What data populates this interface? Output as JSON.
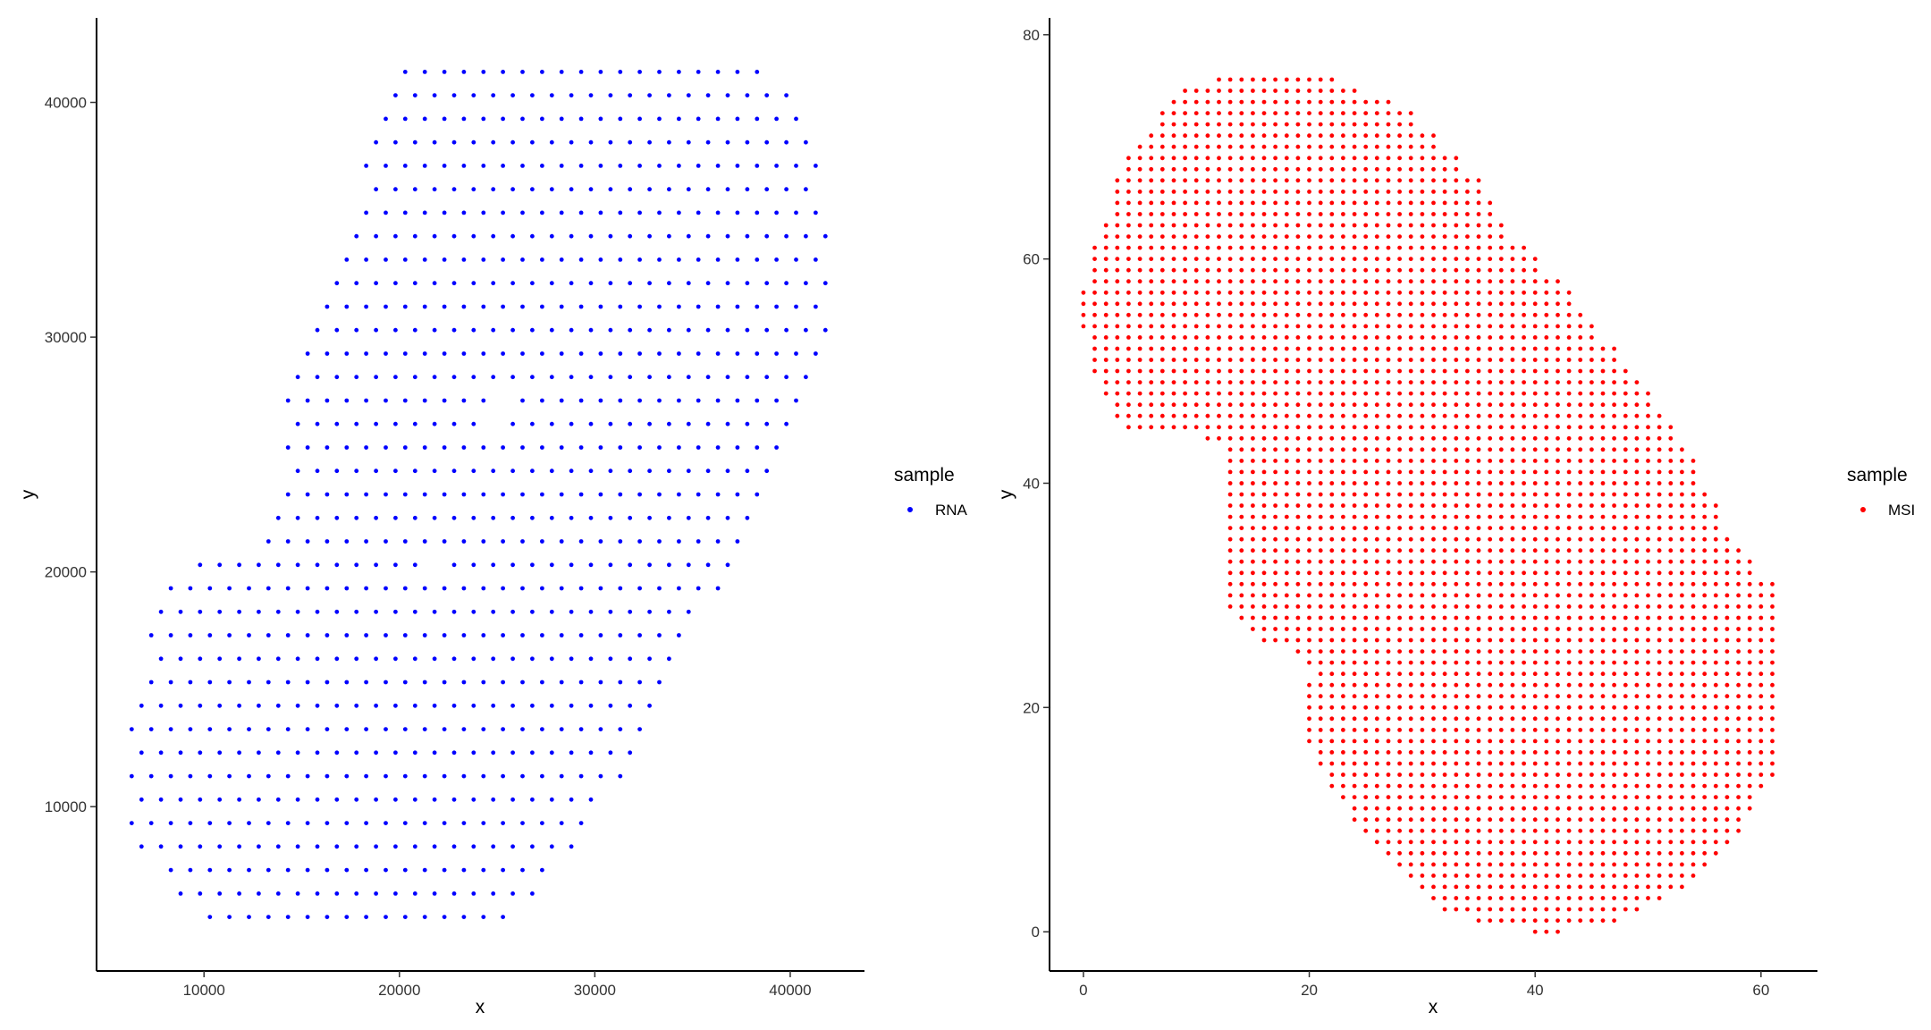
{
  "chart_data": [
    {
      "type": "scatter",
      "title": "",
      "xlabel": "x",
      "ylabel": "y",
      "xlim": [
        4500,
        43800
      ],
      "ylim": [
        3000,
        43600
      ],
      "xticks": [
        10000,
        20000,
        30000,
        40000
      ],
      "yticks": [
        10000,
        20000,
        30000,
        40000
      ],
      "grid": false,
      "legend": {
        "title": "sample",
        "position": "right",
        "entries": [
          {
            "name": "RNA",
            "color": "#0000ff"
          }
        ]
      },
      "series": [
        {
          "name": "RNA",
          "color": "#0000ff",
          "pattern": "hexagonal spot grid (Visium-like), spacing ~500 units in x, ~1000 units in y with alternate rows offset by half a step",
          "region_outline": [
            [
              6300,
              13500
            ],
            [
              7300,
              18000
            ],
            [
              9000,
              20400
            ],
            [
              11500,
              20600
            ],
            [
              13000,
              21000
            ],
            [
              14000,
              23000
            ],
            [
              14300,
              28500
            ],
            [
              15400,
              31500
            ],
            [
              17500,
              33500
            ],
            [
              17700,
              36000
            ],
            [
              19000,
              39500
            ],
            [
              20800,
              42000
            ],
            [
              38200,
              42000
            ],
            [
              40500,
              40000
            ],
            [
              41500,
              37500
            ],
            [
              42300,
              33800
            ],
            [
              42300,
              29800
            ],
            [
              41000,
              28000
            ],
            [
              39500,
              24000
            ],
            [
              37500,
              21200
            ],
            [
              35000,
              17000
            ],
            [
              33000,
              13500
            ],
            [
              31500,
              11500
            ],
            [
              29500,
              9000
            ],
            [
              27500,
              6500
            ],
            [
              26000,
              5300
            ],
            [
              9500,
              5300
            ],
            [
              7800,
              6500
            ],
            [
              6300,
              9000
            ]
          ],
          "gaps": [
            [
              25000,
              26800
            ],
            [
              21800,
              20300
            ]
          ]
        }
      ]
    },
    {
      "type": "scatter",
      "title": "",
      "xlabel": "x",
      "ylabel": "y",
      "xlim": [
        -3,
        65
      ],
      "ylim": [
        -3.5,
        81.5
      ],
      "xticks": [
        0,
        20,
        40,
        60
      ],
      "yticks": [
        0,
        20,
        40,
        60,
        80
      ],
      "grid": false,
      "legend": {
        "title": "sample",
        "position": "right",
        "entries": [
          {
            "name": "MSI",
            "color": "#ff0000"
          }
        ]
      },
      "series": [
        {
          "name": "MSI",
          "color": "#ff0000",
          "pattern": "square pixel grid, step 1 unit in x and y",
          "region_outline": [
            [
              0,
              57
            ],
            [
              1,
              61
            ],
            [
              2,
              63
            ],
            [
              3,
              67
            ],
            [
              4,
              69
            ],
            [
              6,
              71
            ],
            [
              7,
              73
            ],
            [
              9,
              75
            ],
            [
              12,
              76
            ],
            [
              14,
              77
            ],
            [
              19,
              77
            ],
            [
              25,
              75
            ],
            [
              28,
              74
            ],
            [
              30,
              72
            ],
            [
              32,
              70
            ],
            [
              34,
              68
            ],
            [
              36,
              66
            ],
            [
              37,
              64
            ],
            [
              38,
              62
            ],
            [
              41,
              59
            ],
            [
              44,
              56
            ],
            [
              46,
              53
            ],
            [
              48,
              51
            ],
            [
              51,
              47
            ],
            [
              53,
              44
            ],
            [
              55,
              40
            ],
            [
              57,
              36
            ],
            [
              60,
              32
            ],
            [
              62,
              30
            ],
            [
              62,
              14
            ],
            [
              60,
              12
            ],
            [
              58,
              8
            ],
            [
              55,
              5
            ],
            [
              52,
              3
            ],
            [
              48,
              1
            ],
            [
              43,
              0
            ],
            [
              39,
              0
            ],
            [
              34,
              1
            ],
            [
              31,
              2
            ],
            [
              28,
              5
            ],
            [
              25,
              8
            ],
            [
              23,
              11
            ],
            [
              21,
              14
            ],
            [
              20,
              17
            ],
            [
              20,
              23
            ],
            [
              18,
              25
            ],
            [
              15,
              26
            ],
            [
              13,
              29
            ],
            [
              13,
              44
            ],
            [
              10,
              44
            ],
            [
              6,
              45
            ],
            [
              3,
              45
            ],
            [
              2,
              47
            ],
            [
              1,
              49
            ],
            [
              0,
              54
            ]
          ]
        }
      ]
    }
  ]
}
